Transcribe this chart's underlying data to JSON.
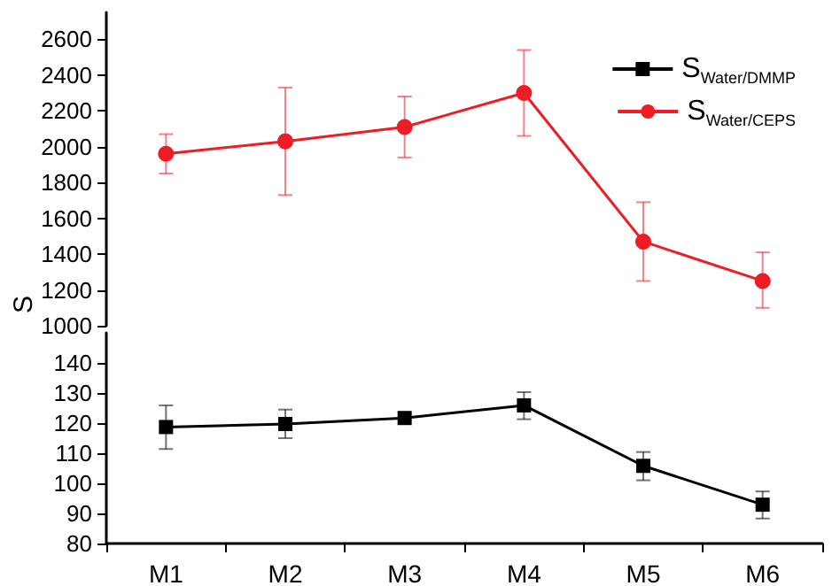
{
  "chart_data": [
    {
      "type": "line",
      "ylabel": "S",
      "categories": [
        null,
        null,
        null,
        null,
        null,
        null
      ],
      "ylim": [
        1000,
        2750
      ],
      "yticks": [
        1000,
        1200,
        1400,
        1600,
        1800,
        2000,
        2200,
        2400,
        2600
      ],
      "tick_labels": "y",
      "marker": "circle",
      "legend": "top right",
      "grid": false,
      "series": [
        {
          "name": "S$_{Water/CEPS}$",
          "color": "#ee1c25",
          "values": [
            1960,
            2030,
            2110,
            2300,
            1470,
            1250
          ],
          "errors": [
            [
              1850,
              2070
            ],
            [
              1730,
              2330
            ],
            [
              1940,
              2280
            ],
            [
              2060,
              2540
            ],
            [
              1250,
              1690
            ],
            [
              1100,
              1410
            ]
          ]
        }
      ]
    },
    {
      "type": "line",
      "categories": [
        "M1",
        "M2",
        "M3",
        "M4",
        "M5",
        "M6"
      ],
      "ylim": [
        80,
        150
      ],
      "yticks": [
        80,
        90,
        100,
        110,
        120,
        130,
        140
      ],
      "marker": "square",
      "legend": "top right",
      "grid": false,
      "series": [
        {
          "name": "S$_{Water/DMMP}$",
          "color": "#000000",
          "values": [
            118.7,
            119.7,
            121.7,
            125.9,
            105.8,
            92.9
          ],
          "errors": [
            [
              111.4,
              125.9
            ],
            [
              115,
              124.5
            ],
            null,
            [
              121.3,
              130.3
            ],
            [
              101,
              110.4
            ],
            [
              88.3,
              97.3
            ]
          ]
        }
      ]
    }
  ]
}
